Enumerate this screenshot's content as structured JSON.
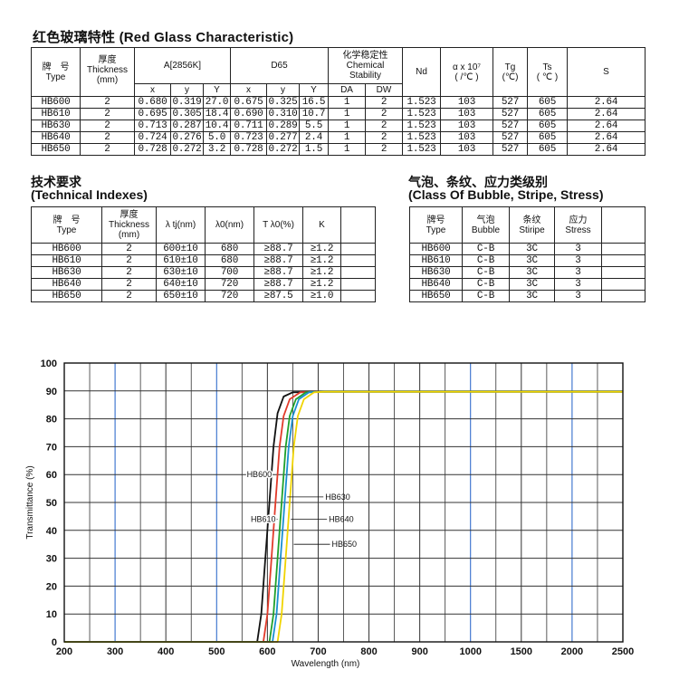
{
  "title": "红色玻璃特性 (Red Glass Characteristic)",
  "main_table": {
    "head": {
      "type_cn": "牌　号",
      "type_en": "Type",
      "thick_cn": "厚度",
      "thick_en": "Thickness",
      "thick_unit": "(mm)",
      "group_a": "A[2856K]",
      "group_d65": "D65",
      "chem_cn": "化学稳定性",
      "chem_en1": "Chemical",
      "chem_en2": "Stability",
      "nd": "Nd",
      "alpha": "α x 10⁷",
      "alpha_unit": "( /℃ )",
      "tg": "Tg",
      "tg_unit": "(℃)",
      "ts": "Ts",
      "ts_unit": "( ℃ )",
      "s": "S",
      "sub_x": "x",
      "sub_y": "y",
      "sub_Y": "Y",
      "da": "DA",
      "dw": "DW"
    },
    "rows": [
      [
        "HB600",
        "2",
        "0.680",
        "0.319",
        "27.0",
        "0.675",
        "0.325",
        "16.5",
        "1",
        "2",
        "1.523",
        "103",
        "527",
        "605",
        "2.64"
      ],
      [
        "HB610",
        "2",
        "0.695",
        "0.305",
        "18.4",
        "0.690",
        "0.310",
        "10.7",
        "1",
        "2",
        "1.523",
        "103",
        "527",
        "605",
        "2.64"
      ],
      [
        "HB630",
        "2",
        "0.713",
        "0.287",
        "10.4",
        "0.711",
        "0.289",
        "5.5",
        "1",
        "2",
        "1.523",
        "103",
        "527",
        "605",
        "2.64"
      ],
      [
        "HB640",
        "2",
        "0.724",
        "0.276",
        "5.0",
        "0.723",
        "0.277",
        "2.4",
        "1",
        "2",
        "1.523",
        "103",
        "527",
        "605",
        "2.64"
      ],
      [
        "HB650",
        "2",
        "0.728",
        "0.272",
        "3.2",
        "0.728",
        "0.272",
        "1.5",
        "1",
        "2",
        "1.523",
        "103",
        "527",
        "605",
        "2.64"
      ]
    ]
  },
  "tech": {
    "title_cn": "技术要求",
    "title_en": "(Technical Indexes)",
    "head": [
      "牌　号",
      "Type",
      "厚度",
      "Thickness",
      "(mm)",
      "λ tj(nm)",
      "λ0(nm)",
      "T λ0(%)",
      "K"
    ],
    "rows": [
      [
        "HB600",
        "2",
        "600±10",
        "680",
        "≥88.7",
        "≥1.2"
      ],
      [
        "HB610",
        "2",
        "610±10",
        "680",
        "≥88.7",
        "≥1.2"
      ],
      [
        "HB630",
        "2",
        "630±10",
        "700",
        "≥88.7",
        "≥1.2"
      ],
      [
        "HB640",
        "2",
        "640±10",
        "720",
        "≥88.7",
        "≥1.2"
      ],
      [
        "HB650",
        "2",
        "650±10",
        "720",
        "≥87.5",
        "≥1.0"
      ]
    ]
  },
  "bubble": {
    "title_cn": "气泡、条纹、应力类级别",
    "title_en": "(Class Of Bubble, Stripe, Stress)",
    "head": [
      "牌号",
      "Type",
      "气泡",
      "Bubble",
      "条纹",
      "Stiripe",
      "应力",
      "Stress"
    ],
    "rows": [
      [
        "HB600",
        "C-B",
        "3C",
        "3"
      ],
      [
        "HB610",
        "C-B",
        "3C",
        "3"
      ],
      [
        "HB630",
        "C-B",
        "3C",
        "3"
      ],
      [
        "HB640",
        "C-B",
        "3C",
        "3"
      ],
      [
        "HB650",
        "C-B",
        "3C",
        "3"
      ]
    ]
  },
  "chart_data": {
    "type": "line",
    "title": "",
    "xlabel": "Wavelength (nm)",
    "ylabel": "Transmittance (%)",
    "x_ticks": [
      200,
      300,
      400,
      500,
      600,
      700,
      800,
      900,
      1000,
      1500,
      2000,
      2500
    ],
    "y_ticks": [
      0,
      10,
      20,
      30,
      40,
      50,
      60,
      70,
      80,
      90,
      100
    ],
    "ylim": [
      0,
      100
    ],
    "grid": true,
    "series": [
      {
        "name": "HB600",
        "color": "#111111",
        "points": [
          [
            200,
            0
          ],
          [
            580,
            0
          ],
          [
            588,
            10
          ],
          [
            596,
            30
          ],
          [
            604,
            50
          ],
          [
            612,
            70
          ],
          [
            620,
            82
          ],
          [
            632,
            88
          ],
          [
            650,
            89.5
          ],
          [
            700,
            89.7
          ],
          [
            2500,
            89.7
          ]
        ]
      },
      {
        "name": "HB610",
        "color": "#e23a2a",
        "points": [
          [
            200,
            0
          ],
          [
            592,
            0
          ],
          [
            600,
            10
          ],
          [
            608,
            30
          ],
          [
            616,
            50
          ],
          [
            624,
            70
          ],
          [
            632,
            81
          ],
          [
            644,
            87
          ],
          [
            665,
            89.5
          ],
          [
            700,
            89.7
          ],
          [
            2500,
            89.7
          ]
        ]
      },
      {
        "name": "HB630",
        "color": "#1fa02a",
        "points": [
          [
            200,
            0
          ],
          [
            604,
            0
          ],
          [
            612,
            10
          ],
          [
            620,
            30
          ],
          [
            628,
            50
          ],
          [
            636,
            70
          ],
          [
            644,
            81
          ],
          [
            656,
            87
          ],
          [
            676,
            89.5
          ],
          [
            705,
            89.7
          ],
          [
            2500,
            89.7
          ]
        ]
      },
      {
        "name": "HB640",
        "color": "#1a8fd0",
        "points": [
          [
            200,
            0
          ],
          [
            610,
            0
          ],
          [
            618,
            10
          ],
          [
            626,
            30
          ],
          [
            634,
            50
          ],
          [
            642,
            70
          ],
          [
            650,
            81
          ],
          [
            662,
            87
          ],
          [
            682,
            89.5
          ],
          [
            710,
            89.7
          ],
          [
            2500,
            89.7
          ]
        ]
      },
      {
        "name": "HB650",
        "color": "#f0d400",
        "points": [
          [
            200,
            0
          ],
          [
            620,
            0
          ],
          [
            628,
            10
          ],
          [
            636,
            30
          ],
          [
            644,
            50
          ],
          [
            652,
            70
          ],
          [
            660,
            81
          ],
          [
            672,
            87
          ],
          [
            692,
            89.5
          ],
          [
            712,
            89.7
          ],
          [
            2500,
            89.7
          ]
        ]
      }
    ],
    "annotations": [
      {
        "label": "HB600",
        "wl": 612,
        "t": 60
      },
      {
        "label": "HB610",
        "wl": 620,
        "t": 44
      },
      {
        "label": "HB630",
        "wl": 639,
        "t": 52
      },
      {
        "label": "HB640",
        "wl": 646,
        "t": 44
      },
      {
        "label": "HB650",
        "wl": 652,
        "t": 35
      }
    ]
  }
}
